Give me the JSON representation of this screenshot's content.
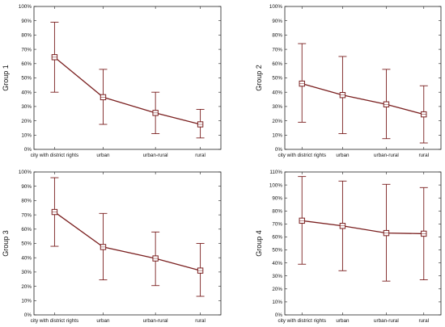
{
  "colors": {
    "line": "#7a1f1f",
    "axis": "#222222",
    "marker_fill": "#ffffff"
  },
  "chart_data": [
    {
      "type": "line",
      "ylabel": "Group 1",
      "categories": [
        "city with district rights",
        "urban",
        "urban-rural",
        "rural"
      ],
      "values": [
        64.5,
        36.5,
        25.5,
        17.5
      ],
      "error_low": [
        40,
        17.5,
        11,
        8
      ],
      "error_high": [
        89,
        56,
        40,
        28
      ],
      "ylim": [
        0,
        100
      ],
      "yticks": [
        "0%",
        "10%",
        "20%",
        "30%",
        "40%",
        "50%",
        "60%",
        "70%",
        "80%",
        "90%",
        "100%"
      ],
      "grid": false
    },
    {
      "type": "line",
      "ylabel": "Group 2",
      "categories": [
        "city with district rights",
        "urban",
        "urban-rural",
        "rural"
      ],
      "values": [
        46,
        38,
        31.5,
        24.5
      ],
      "error_low": [
        19,
        11,
        7.5,
        4.5
      ],
      "error_high": [
        74,
        65,
        56,
        44.5
      ],
      "ylim": [
        0,
        100
      ],
      "yticks": [
        "0%",
        "10%",
        "20%",
        "30%",
        "40%",
        "50%",
        "60%",
        "70%",
        "80%",
        "90%",
        "100%"
      ],
      "grid": false
    },
    {
      "type": "line",
      "ylabel": "Group 3",
      "categories": [
        "city with district rights",
        "urban",
        "urban-rural",
        "rural"
      ],
      "values": [
        72,
        47.5,
        39.5,
        31
      ],
      "error_low": [
        48,
        24.5,
        20.5,
        13
      ],
      "error_high": [
        96,
        71,
        58,
        50
      ],
      "ylim": [
        0,
        100
      ],
      "yticks": [
        "0%",
        "10%",
        "20%",
        "30%",
        "40%",
        "50%",
        "60%",
        "70%",
        "80%",
        "90%",
        "100%"
      ],
      "grid": false
    },
    {
      "type": "line",
      "ylabel": "Group 4",
      "categories": [
        "city with district rights",
        "urban",
        "urban-rural",
        "rural"
      ],
      "values": [
        72.5,
        68.5,
        63,
        62.5
      ],
      "error_low": [
        39,
        34,
        26,
        27
      ],
      "error_high": [
        106.5,
        103,
        100.5,
        98
      ],
      "ylim": [
        0,
        110
      ],
      "yticks": [
        "0%",
        "10%",
        "20%",
        "30%",
        "40%",
        "50%",
        "60%",
        "70%",
        "80%",
        "90%",
        "100%",
        "110%"
      ],
      "grid": false
    }
  ]
}
